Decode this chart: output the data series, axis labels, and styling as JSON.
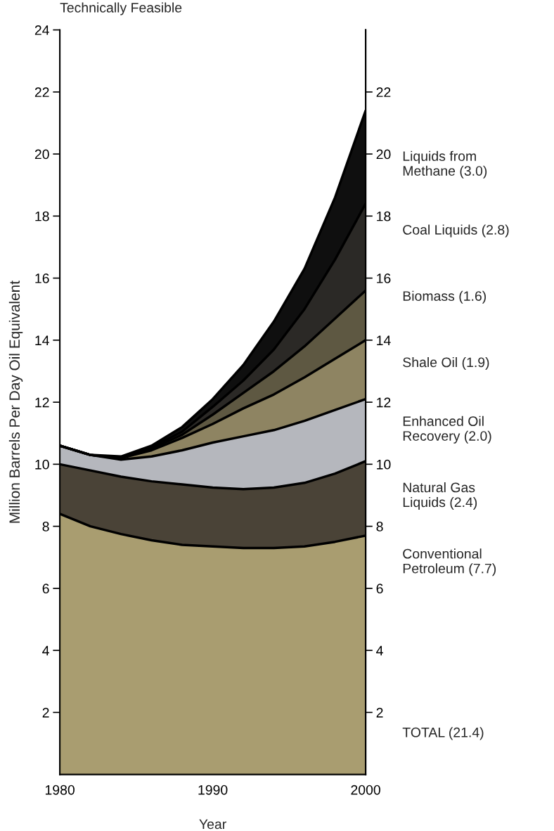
{
  "chart_data": {
    "type": "area",
    "stacked": true,
    "title": "Technically Feasible",
    "xlabel": "Year",
    "ylabel": "Million Barrels Per Day Oil Equivalent",
    "x": [
      1980,
      1982,
      1984,
      1986,
      1988,
      1990,
      1992,
      1994,
      1996,
      1998,
      2000
    ],
    "xlim": [
      1980,
      2000
    ],
    "xticks": [
      1980,
      1990,
      2000
    ],
    "ylim": [
      0,
      24
    ],
    "yticks": [
      2,
      4,
      6,
      8,
      10,
      12,
      14,
      16,
      18,
      20,
      22,
      24
    ],
    "y2lim": [
      0,
      24
    ],
    "y2ticks": [
      2,
      4,
      6,
      8,
      10,
      12,
      14,
      16,
      18,
      20,
      22
    ],
    "grid": false,
    "legend": "right",
    "series": [
      {
        "name": "Conventional Petroleum (7.7)",
        "color": "#a99d70",
        "values": [
          8.4,
          8.0,
          7.75,
          7.55,
          7.4,
          7.35,
          7.3,
          7.3,
          7.35,
          7.5,
          7.7
        ]
      },
      {
        "name": "Natural Gas Liquids (2.4)",
        "color": "#4a4337",
        "values": [
          1.6,
          1.8,
          1.85,
          1.9,
          1.95,
          1.9,
          1.9,
          1.95,
          2.05,
          2.2,
          2.4
        ]
      },
      {
        "name": "Enhanced Oil Recovery (2.0)",
        "color": "#b5b7bd",
        "values": [
          0.6,
          0.5,
          0.55,
          0.8,
          1.1,
          1.45,
          1.7,
          1.85,
          2.0,
          2.05,
          2.0
        ]
      },
      {
        "name": "Shale Oil (1.9)",
        "color": "#8e8462",
        "values": [
          0,
          0,
          0.05,
          0.2,
          0.4,
          0.6,
          0.9,
          1.15,
          1.4,
          1.65,
          1.9
        ]
      },
      {
        "name": "Biomass (1.6)",
        "color": "#5e5842",
        "values": [
          0,
          0,
          0,
          0.05,
          0.1,
          0.3,
          0.5,
          0.75,
          1.0,
          1.3,
          1.6
        ]
      },
      {
        "name": "Coal Liquids (2.8)",
        "color": "#2b2926",
        "values": [
          0,
          0,
          0,
          0.05,
          0.1,
          0.25,
          0.4,
          0.7,
          1.2,
          1.9,
          2.8
        ]
      },
      {
        "name": "Liquids from Methane (3.0)",
        "color": "#0f0f0f",
        "values": [
          0,
          0,
          0.05,
          0.05,
          0.15,
          0.25,
          0.5,
          0.9,
          1.3,
          2.0,
          3.0
        ]
      }
    ],
    "annotations": [
      "TOTAL (21.4)"
    ]
  }
}
